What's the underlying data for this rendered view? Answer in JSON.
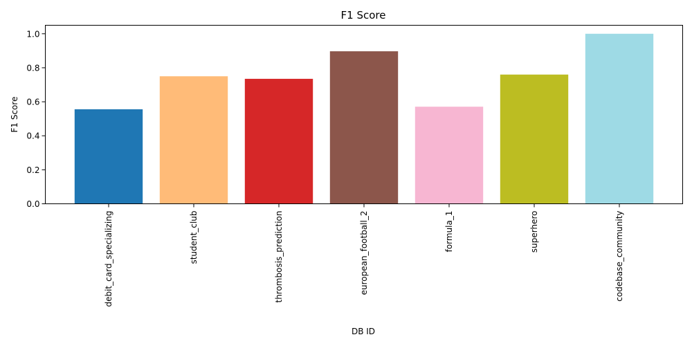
{
  "chart_data": {
    "type": "bar",
    "title": "F1 Score",
    "xlabel": "DB ID",
    "ylabel": "F1 Score",
    "categories": [
      "debit_card_specializing",
      "student_club",
      "thrombosis_prediction",
      "european_football_2",
      "formula_1",
      "superhero",
      "codebase_community"
    ],
    "values": [
      0.556,
      0.75,
      0.735,
      0.897,
      0.571,
      0.76,
      1.0
    ],
    "colors": [
      "#1f77b4",
      "#ffbb78",
      "#d62728",
      "#8c564b",
      "#f7b6d2",
      "#bcbd22",
      "#9edae5"
    ],
    "ylim": [
      0,
      1.05
    ],
    "yticks": [
      "0.0",
      "0.2",
      "0.4",
      "0.6",
      "0.8",
      "1.0"
    ],
    "grid": false,
    "legend": "none"
  }
}
